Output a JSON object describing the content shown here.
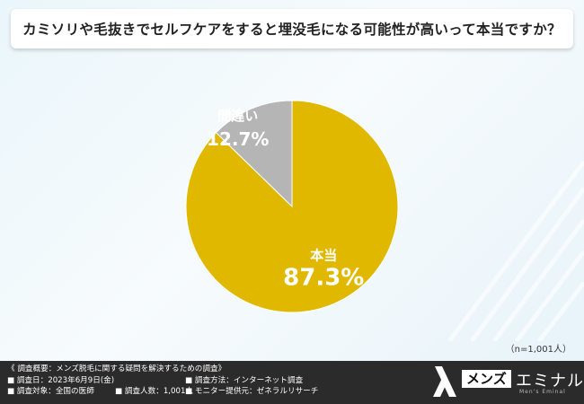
{
  "title": "カミソリや毛抜きでセルフケアをすると埋没毛になる可能性が高いって本当ですか？",
  "chart_data": {
    "type": "pie",
    "slices": [
      {
        "label": "本当",
        "value": 87.3,
        "display": "87.3%",
        "color": "#e0b800"
      },
      {
        "label": "間違い",
        "value": 12.7,
        "display": "12.7%",
        "color": "#b5b5b5"
      }
    ],
    "start_angle_deg": 0,
    "direction": "clockwise"
  },
  "sample_note": "（n=1,001人）",
  "footer": {
    "heading": "《 調査概要：メンズ脱毛に関する疑問を解決するための調査》",
    "rows": [
      [
        "■ 調査日：2023年6月9日(金)",
        "■ 調査方法：インターネット調査"
      ],
      [
        "■ 調査対象：全国の医師",
        "■ 調査人数：1,001人",
        "■ モニター提供元：ゼネラルリサーチ"
      ]
    ]
  },
  "logo": {
    "box_text": "メンズ",
    "word": "エミナル",
    "sub": "Men's Eminal"
  }
}
